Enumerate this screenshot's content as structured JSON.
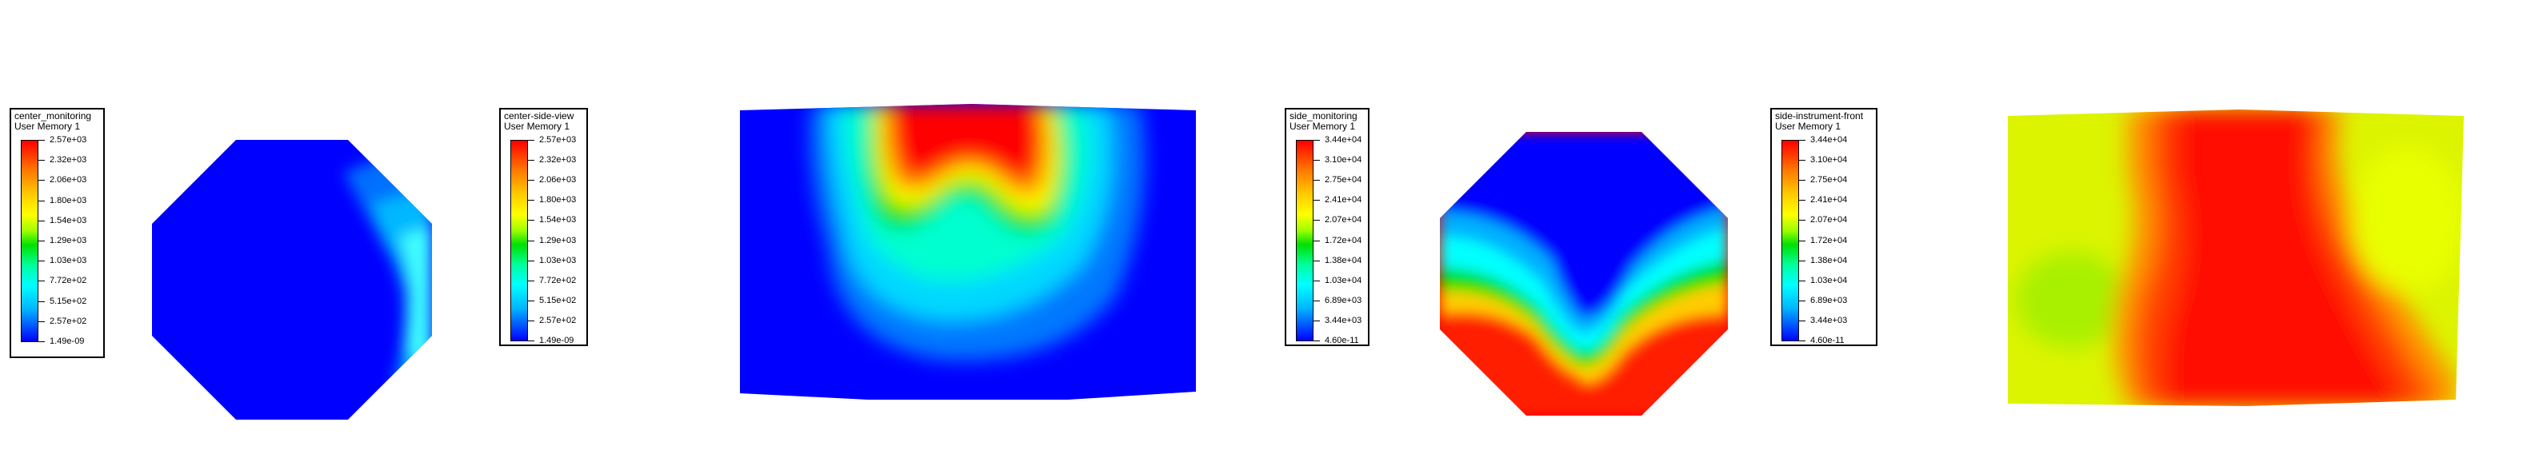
{
  "legends": [
    {
      "title": [
        "center_monitoring",
        "User Memory 1"
      ],
      "labels": [
        "2.57e+03",
        "2.32e+03",
        "2.06e+03",
        "1.80e+03",
        "1.54e+03",
        "1.29e+03",
        "1.03e+03",
        "7.72e+02",
        "5.15e+02",
        "2.57e+02",
        "1.49e-09"
      ]
    },
    {
      "title": [
        "center-side-view",
        "User Memory 1"
      ],
      "labels": [
        "2.57e+03",
        "2.32e+03",
        "2.06e+03",
        "1.80e+03",
        "1.54e+03",
        "1.29e+03",
        "1.03e+03",
        "7.72e+02",
        "5.15e+02",
        "2.57e+02",
        "1.49e-09"
      ]
    },
    {
      "title": [
        "side_monitoring",
        "User Memory 1"
      ],
      "labels": [
        "3.44e+04",
        "3.10e+04",
        "2.75e+04",
        "2.41e+04",
        "2.07e+04",
        "1.72e+04",
        "1.38e+04",
        "1.03e+04",
        "6.89e+03",
        "3.44e+03",
        "4.60e-11"
      ]
    },
    {
      "title": [
        "side-instrument-front",
        "User Memory 1"
      ],
      "labels": [
        "3.44e+04",
        "3.10e+04",
        "2.75e+04",
        "2.41e+04",
        "2.07e+04",
        "1.72e+04",
        "1.38e+04",
        "1.03e+04",
        "6.89e+03",
        "3.44e+03",
        "4.60e-11"
      ]
    }
  ],
  "colors": {
    "low": "#0000ff",
    "cyan": "#00ffff",
    "green": "#00e000",
    "yellow": "#ffff00",
    "orange": "#ff8000",
    "high": "#ff0000",
    "yellow_green": "#dcf400"
  }
}
